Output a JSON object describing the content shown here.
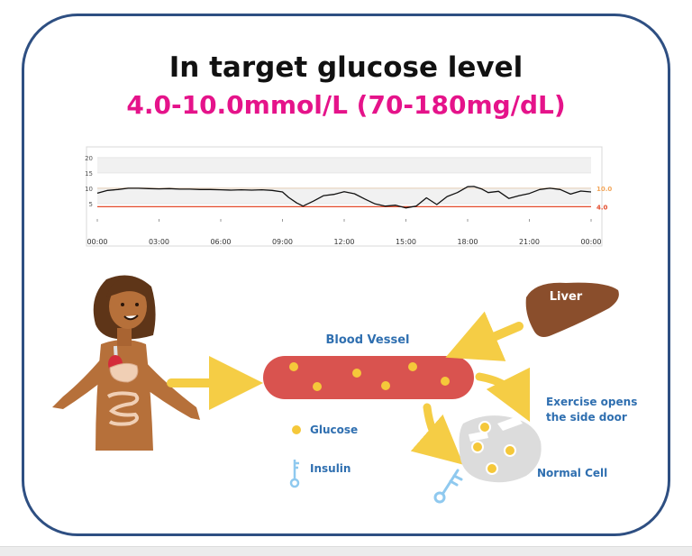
{
  "title": "In target glucose level",
  "subtitle": "4.0-10.0mmol/L (70-180mg/dL)",
  "chart_data": {
    "type": "line",
    "title": "",
    "xlabel": "",
    "ylabel": "",
    "xlim": [
      0,
      24
    ],
    "ylim": [
      0,
      22
    ],
    "x_tick_labels": [
      "00:00",
      "03:00",
      "06:00",
      "09:00",
      "12:00",
      "15:00",
      "18:00",
      "21:00",
      "00:00"
    ],
    "y_ticks": [
      5,
      10,
      15,
      20
    ],
    "y_tick_labels": [
      "5",
      "10",
      "15",
      "20"
    ],
    "target_lines": [
      {
        "value": 10.0,
        "label": "10.0",
        "color": "#f2a65a"
      },
      {
        "value": 4.0,
        "label": "4.0",
        "color": "#e34b2b"
      }
    ],
    "series": [
      {
        "line_color": "#111111",
        "x": [
          0,
          0.5,
          1,
          1.5,
          2,
          2.5,
          3,
          3.5,
          4,
          4.5,
          5,
          5.5,
          6,
          6.5,
          7,
          7.5,
          8,
          8.5,
          9,
          9.3,
          9.7,
          10,
          10.5,
          11,
          11.5,
          12,
          12.5,
          13,
          13.5,
          14,
          14.5,
          15,
          15.5,
          16,
          16.5,
          17,
          17.5,
          18,
          18.3,
          18.7,
          19,
          19.5,
          20,
          20.5,
          21,
          21.5,
          22,
          22.5,
          23,
          23.5,
          24
        ],
        "y": [
          8.4,
          9.3,
          9.6,
          10.0,
          10.0,
          9.9,
          9.8,
          9.9,
          9.7,
          9.7,
          9.6,
          9.6,
          9.5,
          9.4,
          9.5,
          9.4,
          9.5,
          9.3,
          8.8,
          7.0,
          5.2,
          4.2,
          5.8,
          7.6,
          8.0,
          8.9,
          8.2,
          6.5,
          4.9,
          4.2,
          4.5,
          3.6,
          4.2,
          6.9,
          4.7,
          7.3,
          8.6,
          10.5,
          10.6,
          9.7,
          8.6,
          9.0,
          6.7,
          7.6,
          8.3,
          9.6,
          10.0,
          9.6,
          8.1,
          9.1,
          8.8
        ]
      }
    ]
  },
  "diagram": {
    "blood_vessel_label": "Blood Vessel",
    "liver_label": "Liver",
    "exercise_label_line1": "Exercise opens",
    "exercise_label_line2": "the side door",
    "normal_cell_label": "Normal Cell",
    "legend_glucose": "Glucose",
    "legend_insulin": "Insulin",
    "colors": {
      "vessel": "#d9534f",
      "glucose": "#f5c83a",
      "arrow": "#f5cd45",
      "liver": "#8a4e2c",
      "cell": "#dcdcdc",
      "insulin": "#8fc9ef",
      "skin": "#b6703a",
      "hair": "#5e3518",
      "label_blue": "#2f6fb0"
    }
  }
}
